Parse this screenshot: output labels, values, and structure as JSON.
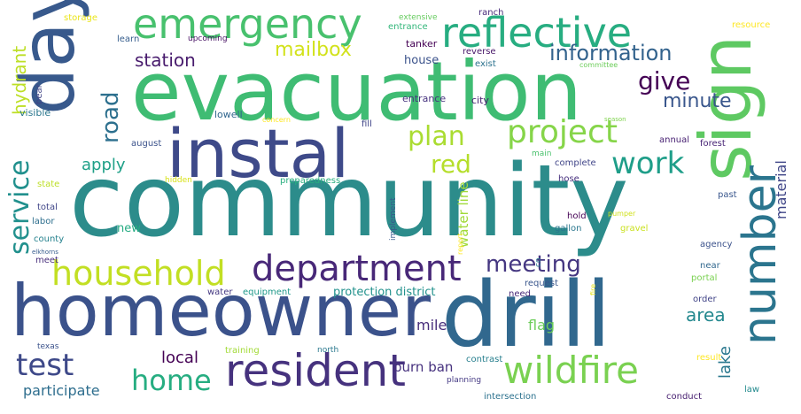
{
  "words": [
    {
      "text": "community",
      "color": "#2c8c8b"
    },
    {
      "text": "evacuation",
      "color": "#3fbc73"
    },
    {
      "text": "drill",
      "color": "#31688e"
    },
    {
      "text": "homeowner",
      "color": "#3b528b"
    },
    {
      "text": "instal",
      "color": "#3e4a89"
    },
    {
      "text": "day",
      "color": "#38598c"
    },
    {
      "text": "sign",
      "color": "#5ec962"
    },
    {
      "text": "number",
      "color": "#2b758e"
    },
    {
      "text": "emergency",
      "color": "#48c16e"
    },
    {
      "text": "reflective",
      "color": "#27ad81"
    },
    {
      "text": "resident",
      "color": "#46327e"
    },
    {
      "text": "wildfire",
      "color": "#7ad151"
    },
    {
      "text": "household",
      "color": "#c2df23"
    },
    {
      "text": "department",
      "color": "#482878"
    },
    {
      "text": "project",
      "color": "#86d549"
    },
    {
      "text": "service",
      "color": "#21908d"
    },
    {
      "text": "work",
      "color": "#1f9e89"
    },
    {
      "text": "plan",
      "color": "#aadc32"
    },
    {
      "text": "red",
      "color": "#b5de2b"
    },
    {
      "text": "home",
      "color": "#26ad81"
    },
    {
      "text": "test",
      "color": "#3e4989"
    },
    {
      "text": "meeting",
      "color": "#453781"
    },
    {
      "text": "road",
      "color": "#2d708e"
    },
    {
      "text": "information",
      "color": "#33638d"
    },
    {
      "text": "give",
      "color": "#440154"
    },
    {
      "text": "minute",
      "color": "#39568c"
    },
    {
      "text": "mailbox",
      "color": "#d2e21b"
    },
    {
      "text": "station",
      "color": "#481b6d"
    },
    {
      "text": "area",
      "color": "#23888e"
    },
    {
      "text": "hydrant",
      "color": "#bddf26"
    },
    {
      "text": "apply",
      "color": "#1fa088"
    },
    {
      "text": "lake",
      "color": "#2a788e"
    },
    {
      "text": "material",
      "color": "#404688"
    },
    {
      "text": "local",
      "color": "#440154"
    },
    {
      "text": "mile",
      "color": "#472d7b"
    },
    {
      "text": "flag",
      "color": "#6ccd5a"
    },
    {
      "text": "participate",
      "color": "#2e6e8e"
    },
    {
      "text": "water line",
      "color": "#a0da39"
    },
    {
      "text": "burn ban",
      "color": "#46317e"
    },
    {
      "text": "protection district",
      "color": "#21918c"
    },
    {
      "text": "storage",
      "color": "#eae51a"
    },
    {
      "text": "learn",
      "color": "#365d8d"
    },
    {
      "text": "upcoming",
      "color": "#471164"
    },
    {
      "text": "extensive",
      "color": "#65cb5e"
    },
    {
      "text": "entrance",
      "color": "#32b67a"
    },
    {
      "text": "ranch",
      "color": "#472a7a"
    },
    {
      "text": "tanker",
      "color": "#440154"
    },
    {
      "text": "reverse",
      "color": "#481769"
    },
    {
      "text": "exist",
      "color": "#2c728e"
    },
    {
      "text": "committee",
      "color": "#6ccd5a"
    },
    {
      "text": "resource",
      "color": "#fde725"
    },
    {
      "text": "house",
      "color": "#3b528b"
    },
    {
      "text": "bear",
      "color": "#414487"
    },
    {
      "text": "visible",
      "color": "#2a778e"
    },
    {
      "text": "lowell",
      "color": "#31668e"
    },
    {
      "text": "concern",
      "color": "#fde725"
    },
    {
      "text": "fill",
      "color": "#404588"
    },
    {
      "text": "entrance",
      "color": "#46327e"
    },
    {
      "text": "city",
      "color": "#482071"
    },
    {
      "text": "season",
      "color": "#7fd34e"
    },
    {
      "text": "august",
      "color": "#3b528b"
    },
    {
      "text": "annual",
      "color": "#482173"
    },
    {
      "text": "forest",
      "color": "#482576"
    },
    {
      "text": "main",
      "color": "#4ac16d"
    },
    {
      "text": "complete",
      "color": "#404588"
    },
    {
      "text": "hidden",
      "color": "#d8e219"
    },
    {
      "text": "preparedness",
      "color": "#29af7f"
    },
    {
      "text": "state",
      "color": "#bddf26"
    },
    {
      "text": "hose",
      "color": "#46307e"
    },
    {
      "text": "past",
      "color": "#39568c"
    },
    {
      "text": "total",
      "color": "#404688"
    },
    {
      "text": "labor",
      "color": "#2e6f8e"
    },
    {
      "text": "hold",
      "color": "#440154"
    },
    {
      "text": "gallon",
      "color": "#2a778e"
    },
    {
      "text": "pumper",
      "color": "#d0e11c"
    },
    {
      "text": "implement",
      "color": "#38598c"
    },
    {
      "text": "gravel",
      "color": "#cae11f"
    },
    {
      "text": "county",
      "color": "#26828e"
    },
    {
      "text": "elkhorns",
      "color": "#365c8d"
    },
    {
      "text": "new",
      "color": "#25ab82"
    },
    {
      "text": "report",
      "color": "#fde725"
    },
    {
      "text": "meet",
      "color": "#472d7b"
    },
    {
      "text": "co",
      "color": "#2a788e"
    },
    {
      "text": "agency",
      "color": "#3b528b"
    },
    {
      "text": "near",
      "color": "#31688e"
    },
    {
      "text": "water",
      "color": "#453882"
    },
    {
      "text": "equipment",
      "color": "#1f998a"
    },
    {
      "text": "portal",
      "color": "#7ad151"
    },
    {
      "text": "request",
      "color": "#39568c"
    },
    {
      "text": "fire",
      "color": "#e5e419"
    },
    {
      "text": "need",
      "color": "#482878"
    },
    {
      "text": "order",
      "color": "#414487"
    },
    {
      "text": "texas",
      "color": "#3b528b"
    },
    {
      "text": "training",
      "color": "#a2da37"
    },
    {
      "text": "north",
      "color": "#2a788e"
    },
    {
      "text": "contrast",
      "color": "#277f8e"
    },
    {
      "text": "result",
      "color": "#fde725"
    },
    {
      "text": "planning",
      "color": "#443983"
    },
    {
      "text": "conduct",
      "color": "#482071"
    },
    {
      "text": "law",
      "color": "#238a8d"
    },
    {
      "text": "intersection",
      "color": "#2c728e"
    }
  ]
}
